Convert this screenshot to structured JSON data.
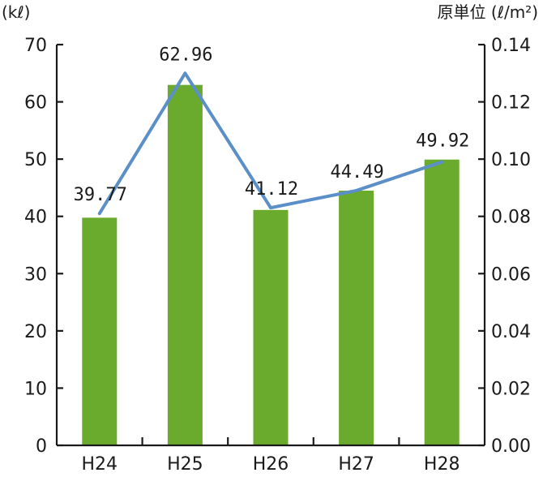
{
  "chart_data": {
    "type": "bar+line",
    "categories": [
      "H24",
      "H25",
      "H26",
      "H27",
      "H28"
    ],
    "series": [
      {
        "values": [
          39.77,
          62.96,
          41.12,
          44.49,
          49.92
        ],
        "type": "bar",
        "axis": "left",
        "color": "#6aab2e"
      },
      {
        "values": [
          0.081,
          0.13,
          0.083,
          0.089,
          0.099
        ],
        "type": "line",
        "axis": "right",
        "color": "#5b8fc7"
      }
    ],
    "data_labels": [
      "39.77",
      "62.96",
      "41.12",
      "44.49",
      "49.92"
    ],
    "y_left": {
      "unit_label": "(kℓ)",
      "ylim": [
        0,
        70
      ],
      "ticks": [
        "0",
        "10",
        "20",
        "30",
        "40",
        "50",
        "60",
        "70"
      ]
    },
    "y_right": {
      "unit_label": "原単位 (ℓ/m²)",
      "ylim": [
        0,
        0.14
      ],
      "ticks": [
        "0.00",
        "0.02",
        "0.04",
        "0.06",
        "0.08",
        "0.10",
        "0.12",
        "0.14"
      ]
    },
    "grid": false,
    "legend": "none"
  }
}
